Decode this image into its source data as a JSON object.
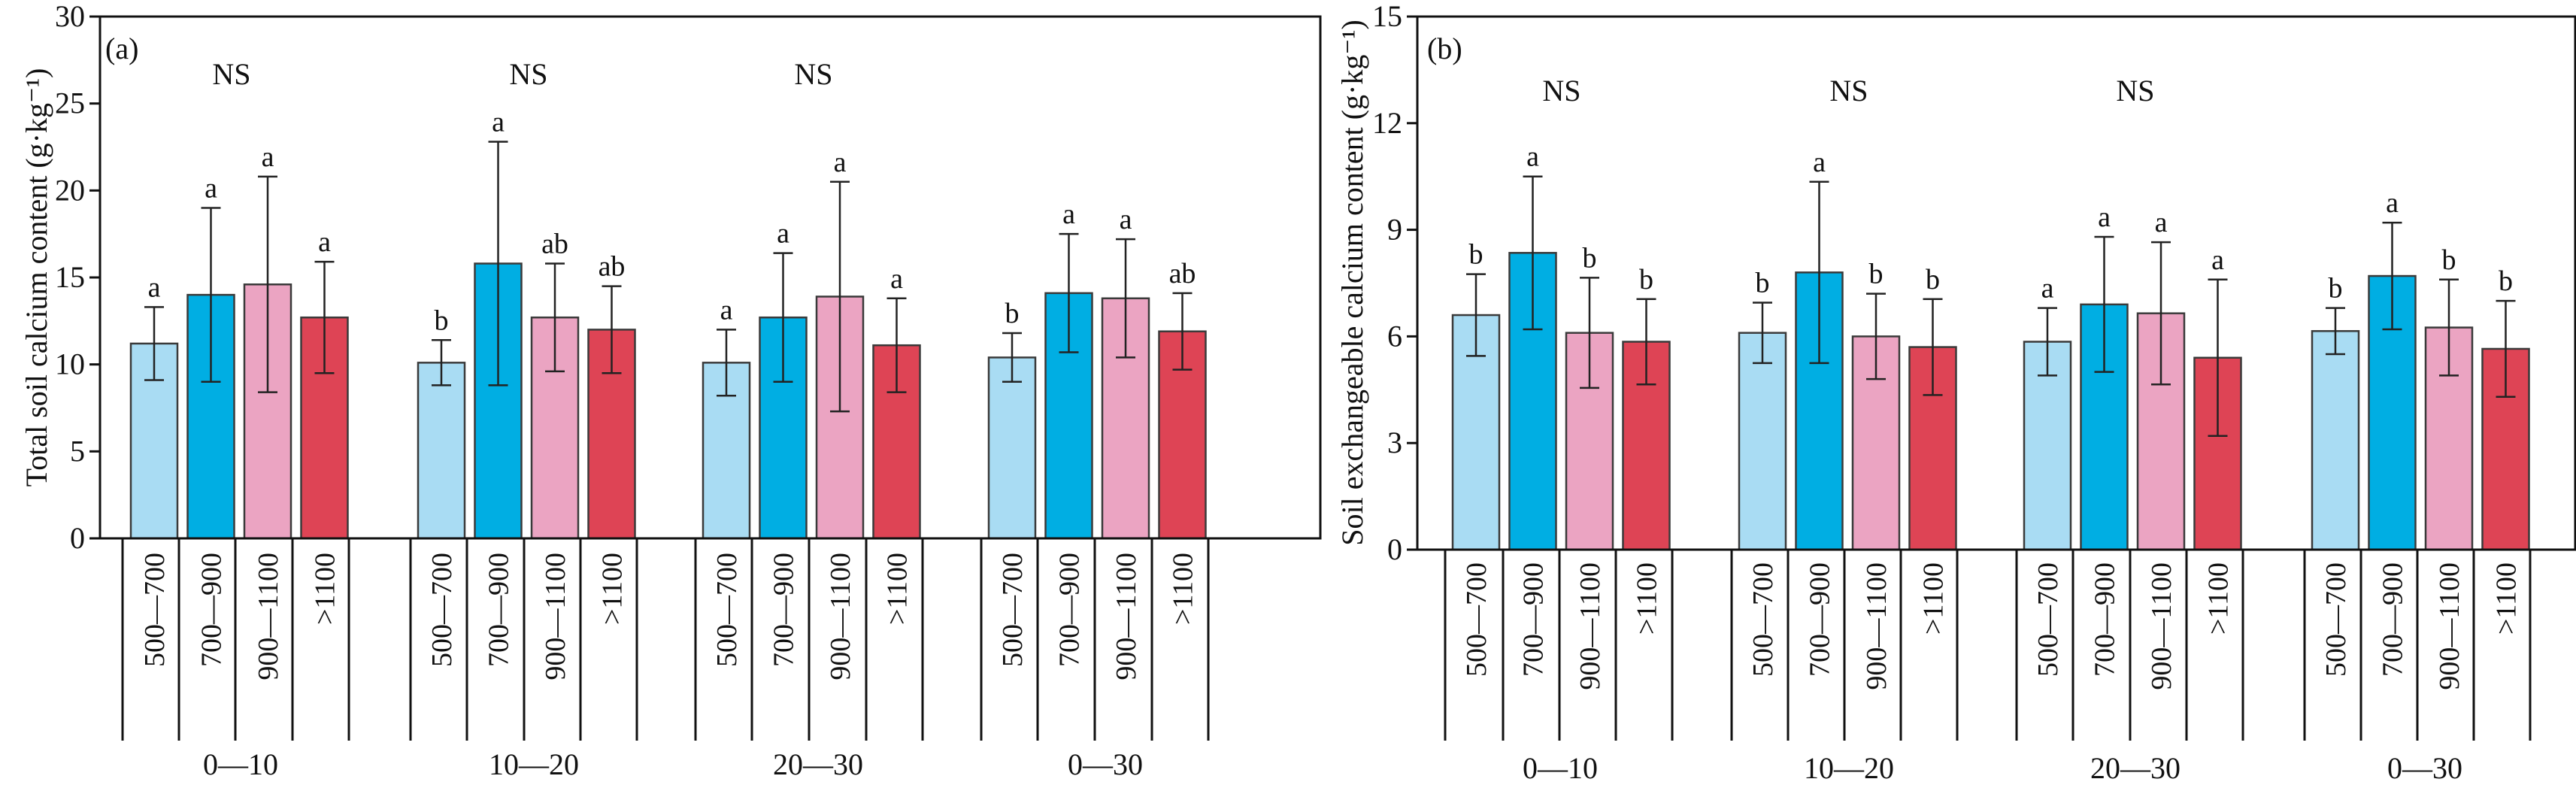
{
  "chart_data": [
    {
      "type": "bar",
      "panel_label": "(a)",
      "ylabel": "Total soil calcium content (g·kg⁻¹)",
      "ylim": [
        0,
        30
      ],
      "yticks": [
        "0",
        "5",
        "10",
        "15",
        "20",
        "25",
        "30"
      ],
      "groups": [
        "0—10",
        "10—20",
        "20—30",
        "0—30"
      ],
      "categories": [
        "500—700",
        "700—900",
        "900—1100",
        ">1100"
      ],
      "colors": [
        "#A9DCF3",
        "#00AEE3",
        "#EBA4C2",
        "#DE4455"
      ],
      "group_sig": [
        "NS",
        "NS",
        "NS",
        ""
      ],
      "series": [
        {
          "name": "500—700",
          "values": [
            11.2,
            10.1,
            10.1,
            10.4
          ],
          "errors": [
            2.1,
            1.3,
            1.9,
            1.4
          ],
          "labels": [
            "a",
            "b",
            "a",
            "b"
          ]
        },
        {
          "name": "700—900",
          "values": [
            14.0,
            15.8,
            12.7,
            14.1
          ],
          "errors": [
            5.0,
            7.0,
            3.7,
            3.4
          ],
          "labels": [
            "a",
            "a",
            "a",
            "a"
          ]
        },
        {
          "name": "900—1100",
          "values": [
            14.6,
            12.7,
            13.9,
            13.8
          ],
          "errors": [
            6.2,
            3.1,
            6.6,
            3.4
          ],
          "labels": [
            "a",
            "ab",
            "a",
            "a"
          ]
        },
        {
          "name": ">1100",
          "values": [
            12.7,
            12.0,
            11.1,
            11.9
          ],
          "errors": [
            3.2,
            2.5,
            2.7,
            2.2
          ],
          "labels": [
            "a",
            "ab",
            "a",
            "ab"
          ]
        }
      ]
    },
    {
      "type": "bar",
      "panel_label": "(b)",
      "ylabel": "Soil exchangeable calcium content (g·kg⁻¹)",
      "ylim": [
        0,
        15
      ],
      "yticks": [
        "0",
        "3",
        "6",
        "9",
        "12",
        "15"
      ],
      "groups": [
        "0—10",
        "10—20",
        "20—30",
        "0—30"
      ],
      "categories": [
        "500—700",
        "700—900",
        "900—1100",
        ">1100"
      ],
      "colors": [
        "#A9DCF3",
        "#00AEE3",
        "#EBA4C2",
        "#DE4455"
      ],
      "group_sig": [
        "NS",
        "NS",
        "NS",
        ""
      ],
      "series": [
        {
          "name": "500—700",
          "values": [
            6.6,
            6.1,
            5.85,
            6.15
          ],
          "errors": [
            1.15,
            0.85,
            0.95,
            0.65
          ],
          "labels": [
            "b",
            "b",
            "a",
            "b"
          ]
        },
        {
          "name": "700—900",
          "values": [
            8.35,
            7.8,
            6.9,
            7.7
          ],
          "errors": [
            2.15,
            2.55,
            1.9,
            1.5
          ],
          "labels": [
            "a",
            "a",
            "a",
            "a"
          ]
        },
        {
          "name": "900—1100",
          "values": [
            6.1,
            6.0,
            6.65,
            6.25
          ],
          "errors": [
            1.55,
            1.2,
            2.0,
            1.35
          ],
          "labels": [
            "b",
            "b",
            "a",
            "b"
          ]
        },
        {
          "name": ">1100",
          "values": [
            5.85,
            5.7,
            5.4,
            5.65
          ],
          "errors": [
            1.2,
            1.35,
            2.2,
            1.35
          ],
          "labels": [
            "b",
            "b",
            "a",
            "b"
          ]
        }
      ]
    }
  ]
}
